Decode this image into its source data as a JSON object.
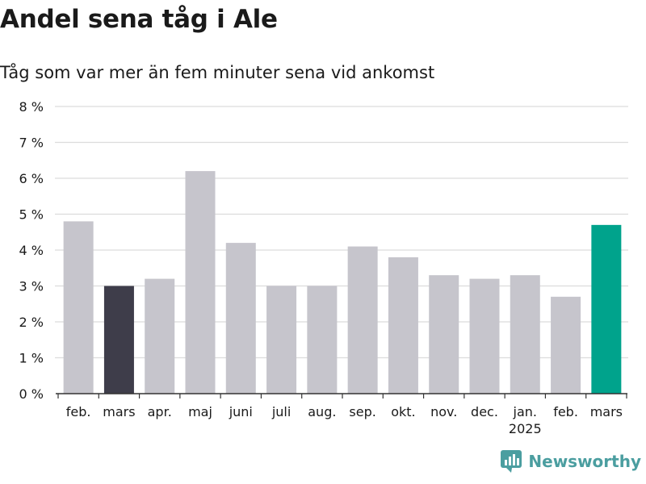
{
  "title": "Andel sena tåg i Ale",
  "subtitle": "Tåg som var mer än fem minuter sena vid ankomst",
  "brand": "Newsworthy",
  "colors": {
    "default_bar": "#c6c5cc",
    "highlight_previous": "#3e3d4a",
    "highlight_current": "#00a38c",
    "grid": "#dcdcdc",
    "axis": "#333333",
    "brand": "#4b9ea0"
  },
  "chart_data": {
    "type": "bar",
    "categories": [
      "feb.",
      "mars",
      "apr.",
      "maj",
      "juni",
      "juli",
      "aug.",
      "sep.",
      "okt.",
      "nov.",
      "dec.",
      "jan.",
      "feb.",
      "mars"
    ],
    "category_sublabels": [
      "",
      "",
      "",
      "",
      "",
      "",
      "",
      "",
      "",
      "",
      "",
      "2025",
      "",
      ""
    ],
    "values": [
      4.8,
      3.0,
      3.2,
      6.2,
      4.2,
      3.0,
      3.0,
      4.1,
      3.8,
      3.3,
      3.2,
      3.3,
      2.7,
      4.7
    ],
    "highlight": [
      "default",
      "previous",
      "default",
      "default",
      "default",
      "default",
      "default",
      "default",
      "default",
      "default",
      "default",
      "default",
      "default",
      "current"
    ],
    "ylim": [
      0,
      8
    ],
    "yticks": [
      0,
      1,
      2,
      3,
      4,
      5,
      6,
      7,
      8
    ],
    "ytick_labels": [
      "0 %",
      "1 %",
      "2 %",
      "3 %",
      "4 %",
      "5 %",
      "6 %",
      "7 %",
      "8 %"
    ],
    "grid": true,
    "xlabel": "",
    "ylabel": ""
  }
}
